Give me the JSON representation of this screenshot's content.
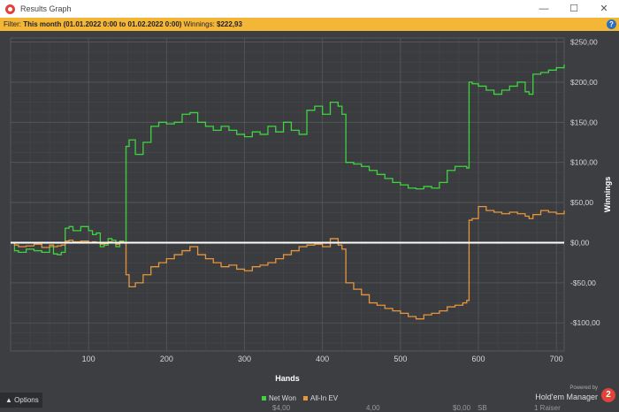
{
  "window": {
    "title": "Results Graph",
    "minimize": "—",
    "maximize": "☐",
    "close": "✕"
  },
  "filter": {
    "label": "Filter:",
    "value": "This month (01.01.2022 0:00 to 01.02.2022 0:00)",
    "winnings_label": "Winnings:",
    "winnings_value": "$222,93",
    "help": "?"
  },
  "bottom": {
    "options_label": "Options",
    "powered_by": "Powered by",
    "brand": "Hold'em Manager",
    "brand_logo": "2"
  },
  "cut_row": [
    "$4,00",
    "4,00",
    "$0,00",
    "SB",
    "1 Raiser"
  ],
  "chart_data": {
    "type": "line",
    "xlabel": "Hands",
    "ylabel": "Winnings",
    "xlim": [
      0,
      710
    ],
    "ylim": [
      -135,
      255
    ],
    "x_ticks": [
      100,
      200,
      300,
      400,
      500,
      600,
      700
    ],
    "y_ticks": [
      250,
      200,
      150,
      100,
      50,
      0,
      -50,
      -100
    ],
    "y_tick_labels": [
      "$250,00",
      "$200,00",
      "$150,00",
      "$100,00",
      "$50,00",
      "$0,00",
      "-$50,00",
      "-$100,00"
    ],
    "grid": true,
    "zero_line": true,
    "legend_position": "bottom-center",
    "series": [
      {
        "name": "Net Won",
        "color": "#3fd43f",
        "x": [
          0,
          5,
          10,
          20,
          30,
          40,
          50,
          55,
          60,
          65,
          70,
          75,
          80,
          90,
          100,
          105,
          110,
          115,
          120,
          125,
          130,
          135,
          140,
          145,
          148,
          152,
          160,
          170,
          180,
          190,
          200,
          210,
          220,
          230,
          240,
          250,
          260,
          270,
          280,
          290,
          300,
          310,
          320,
          330,
          340,
          350,
          360,
          370,
          380,
          390,
          400,
          410,
          420,
          425,
          430,
          440,
          450,
          460,
          470,
          480,
          490,
          500,
          510,
          520,
          530,
          540,
          550,
          560,
          570,
          580,
          585,
          588,
          592,
          600,
          610,
          620,
          630,
          640,
          650,
          660,
          665,
          670,
          680,
          690,
          700,
          710
        ],
        "y": [
          0,
          -10,
          -12,
          -8,
          -10,
          -12,
          -5,
          -14,
          -15,
          -12,
          18,
          20,
          15,
          20,
          15,
          10,
          12,
          -5,
          -3,
          5,
          3,
          -5,
          2,
          0,
          120,
          128,
          110,
          125,
          145,
          150,
          148,
          150,
          160,
          162,
          150,
          145,
          140,
          145,
          140,
          135,
          132,
          138,
          135,
          145,
          138,
          150,
          140,
          135,
          165,
          170,
          160,
          175,
          170,
          160,
          100,
          98,
          95,
          90,
          85,
          80,
          75,
          72,
          68,
          67,
          70,
          68,
          75,
          90,
          95,
          95,
          93,
          200,
          198,
          195,
          190,
          185,
          190,
          195,
          200,
          188,
          185,
          210,
          212,
          215,
          218,
          222
        ]
      },
      {
        "name": "All-In EV",
        "color": "#e8943a",
        "x": [
          0,
          5,
          10,
          20,
          30,
          40,
          50,
          55,
          60,
          65,
          70,
          75,
          80,
          90,
          100,
          105,
          110,
          115,
          120,
          125,
          130,
          135,
          140,
          145,
          148,
          152,
          160,
          170,
          180,
          190,
          200,
          210,
          220,
          230,
          240,
          250,
          260,
          270,
          280,
          290,
          300,
          310,
          320,
          330,
          340,
          350,
          360,
          370,
          380,
          390,
          400,
          410,
          420,
          425,
          430,
          440,
          450,
          460,
          470,
          480,
          490,
          500,
          510,
          520,
          530,
          540,
          550,
          560,
          570,
          580,
          585,
          588,
          592,
          600,
          610,
          620,
          630,
          640,
          650,
          660,
          665,
          670,
          680,
          690,
          700,
          710
        ],
        "y": [
          0,
          -3,
          -5,
          -4,
          -2,
          -6,
          -3,
          -5,
          -4,
          -3,
          2,
          3,
          1,
          2,
          0,
          1,
          0,
          -2,
          -1,
          1,
          0,
          -2,
          1,
          0,
          -40,
          -55,
          -50,
          -40,
          -30,
          -25,
          -20,
          -15,
          -10,
          -5,
          -15,
          -20,
          -25,
          -30,
          -28,
          -33,
          -35,
          -30,
          -28,
          -25,
          -20,
          -15,
          -10,
          -5,
          -3,
          -2,
          -5,
          5,
          -3,
          -8,
          -50,
          -58,
          -65,
          -75,
          -78,
          -82,
          -85,
          -88,
          -92,
          -95,
          -90,
          -88,
          -85,
          -80,
          -78,
          -75,
          -72,
          28,
          30,
          45,
          40,
          38,
          36,
          38,
          36,
          33,
          30,
          35,
          40,
          38,
          36,
          40
        ]
      }
    ]
  }
}
